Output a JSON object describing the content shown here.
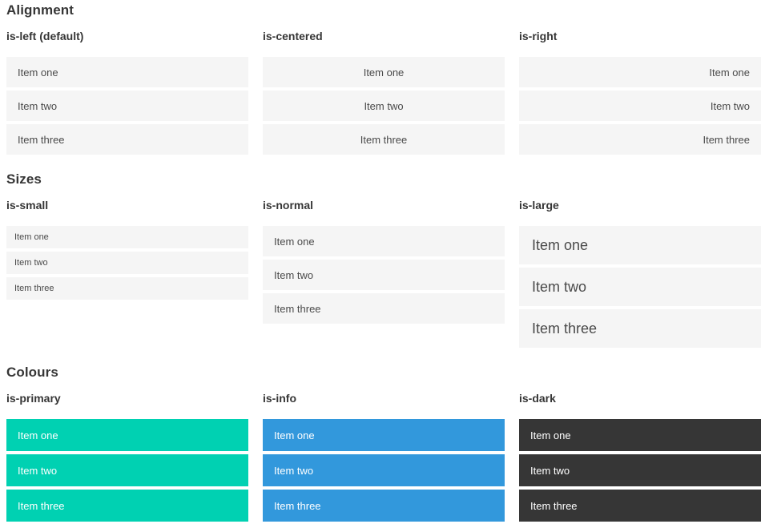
{
  "colors": {
    "primary": "#00d1b2",
    "info": "#3298dc",
    "dark": "#363636",
    "item_bg": "#f5f5f5",
    "item_text": "#4a4a4a",
    "heading_text": "#363636",
    "colour_item_text": "#ffffff"
  },
  "sections": [
    {
      "title": "Alignment",
      "columns": [
        {
          "label": "is-left (default)",
          "items": [
            "Item one",
            "Item two",
            "Item three"
          ]
        },
        {
          "label": "is-centered",
          "items": [
            "Item one",
            "Item two",
            "Item three"
          ]
        },
        {
          "label": "is-right",
          "items": [
            "Item one",
            "Item two",
            "Item three"
          ]
        }
      ]
    },
    {
      "title": "Sizes",
      "columns": [
        {
          "label": "is-small",
          "items": [
            "Item one",
            "Item two",
            "Item three"
          ]
        },
        {
          "label": "is-normal",
          "items": [
            "Item one",
            "Item two",
            "Item three"
          ]
        },
        {
          "label": "is-large",
          "items": [
            "Item one",
            "Item two",
            "Item three"
          ]
        }
      ]
    },
    {
      "title": "Colours",
      "columns": [
        {
          "label": "is-primary",
          "items": [
            "Item one",
            "Item two",
            "Item three"
          ]
        },
        {
          "label": "is-info",
          "items": [
            "Item one",
            "Item two",
            "Item three"
          ]
        },
        {
          "label": "is-dark",
          "items": [
            "Item one",
            "Item two",
            "Item three"
          ]
        }
      ]
    }
  ]
}
